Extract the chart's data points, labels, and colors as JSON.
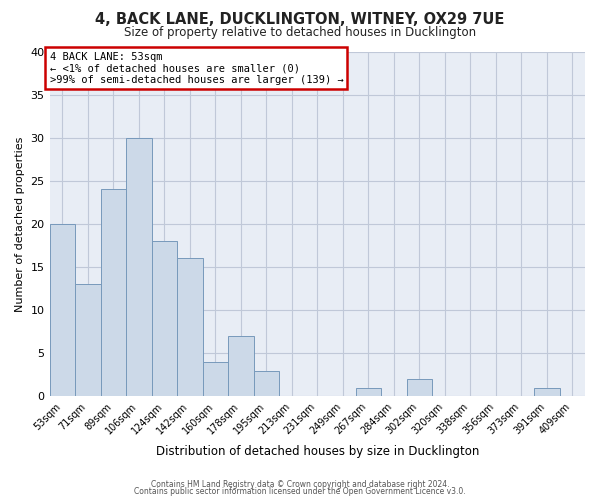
{
  "title": "4, BACK LANE, DUCKLINGTON, WITNEY, OX29 7UE",
  "subtitle": "Size of property relative to detached houses in Ducklington",
  "xlabel": "Distribution of detached houses by size in Ducklington",
  "ylabel": "Number of detached properties",
  "bar_color": "#ccd9e8",
  "bar_edge_color": "#7799bb",
  "axes_bg_color": "#e8edf5",
  "background_color": "#ffffff",
  "grid_color": "#c0c8d8",
  "annotation_box_color": "#cc0000",
  "annotation_line1": "4 BACK LANE: 53sqm",
  "annotation_line2": "← <1% of detached houses are smaller (0)",
  "annotation_line3": ">99% of semi-detached houses are larger (139) →",
  "categories": [
    "53sqm",
    "71sqm",
    "89sqm",
    "106sqm",
    "124sqm",
    "142sqm",
    "160sqm",
    "178sqm",
    "195sqm",
    "213sqm",
    "231sqm",
    "249sqm",
    "267sqm",
    "284sqm",
    "302sqm",
    "320sqm",
    "338sqm",
    "356sqm",
    "373sqm",
    "391sqm",
    "409sqm"
  ],
  "values": [
    20,
    13,
    24,
    30,
    18,
    16,
    4,
    7,
    3,
    0,
    0,
    0,
    1,
    0,
    2,
    0,
    0,
    0,
    0,
    1,
    0
  ],
  "ylim": [
    0,
    40
  ],
  "yticks": [
    0,
    5,
    10,
    15,
    20,
    25,
    30,
    35,
    40
  ],
  "footer1": "Contains HM Land Registry data © Crown copyright and database right 2024.",
  "footer2": "Contains public sector information licensed under the Open Government Licence v3.0."
}
